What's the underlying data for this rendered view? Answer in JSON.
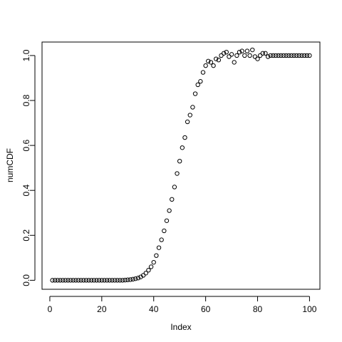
{
  "chart_data": {
    "type": "scatter",
    "title": "",
    "xlabel": "Index",
    "ylabel": "numCDF",
    "xlim": [
      -3,
      104
    ],
    "ylim": [
      -0.04,
      1.06
    ],
    "xticks": [
      0,
      20,
      40,
      60,
      80,
      100
    ],
    "yticks": [
      0.0,
      0.2,
      0.4,
      0.6,
      0.8,
      1.0
    ],
    "xtick_labels": [
      "0",
      "20",
      "40",
      "60",
      "80",
      "100"
    ],
    "ytick_labels": [
      "0.0",
      "0.2",
      "0.4",
      "0.6",
      "0.8",
      "1.0"
    ],
    "grid": false,
    "marker": "open-circle",
    "x": [
      1,
      2,
      3,
      4,
      5,
      6,
      7,
      8,
      9,
      10,
      11,
      12,
      13,
      14,
      15,
      16,
      17,
      18,
      19,
      20,
      21,
      22,
      23,
      24,
      25,
      26,
      27,
      28,
      29,
      30,
      31,
      32,
      33,
      34,
      35,
      36,
      37,
      38,
      39,
      40,
      41,
      42,
      43,
      44,
      45,
      46,
      47,
      48,
      49,
      50,
      51,
      52,
      53,
      54,
      55,
      56,
      57,
      58,
      59,
      60,
      61,
      62,
      63,
      64,
      65,
      66,
      67,
      68,
      69,
      70,
      71,
      72,
      73,
      74,
      75,
      76,
      77,
      78,
      79,
      80,
      81,
      82,
      83,
      84,
      85,
      86,
      87,
      88,
      89,
      90,
      91,
      92,
      93,
      94,
      95,
      96,
      97,
      98,
      99,
      100
    ],
    "y": [
      0,
      0,
      0,
      0,
      0,
      0,
      0,
      0,
      0,
      0,
      0,
      0,
      0,
      0,
      0,
      0,
      0,
      0,
      0,
      0,
      0,
      0,
      0,
      0,
      0,
      0,
      0,
      0,
      0.001,
      0.002,
      0.003,
      0.005,
      0.007,
      0.01,
      0.015,
      0.022,
      0.032,
      0.045,
      0.06,
      0.08,
      0.11,
      0.145,
      0.18,
      0.22,
      0.265,
      0.31,
      0.36,
      0.415,
      0.475,
      0.53,
      0.59,
      0.635,
      0.705,
      0.735,
      0.77,
      0.83,
      0.87,
      0.885,
      0.925,
      0.955,
      0.975,
      0.97,
      0.955,
      0.985,
      0.98,
      1.0,
      1.01,
      1.015,
      0.995,
      1.005,
      0.97,
      1.0,
      1.015,
      1.02,
      1.0,
      1.02,
      1.0,
      1.025,
      0.995,
      0.985,
      1.0,
      1.01,
      1.01,
      0.995,
      1.0,
      1.0,
      1.0,
      1.0,
      1.0,
      1.0,
      1.0,
      1.0,
      1.0,
      1.0,
      1.0,
      1.0,
      1.0,
      1.0,
      1.0,
      1.0
    ]
  }
}
